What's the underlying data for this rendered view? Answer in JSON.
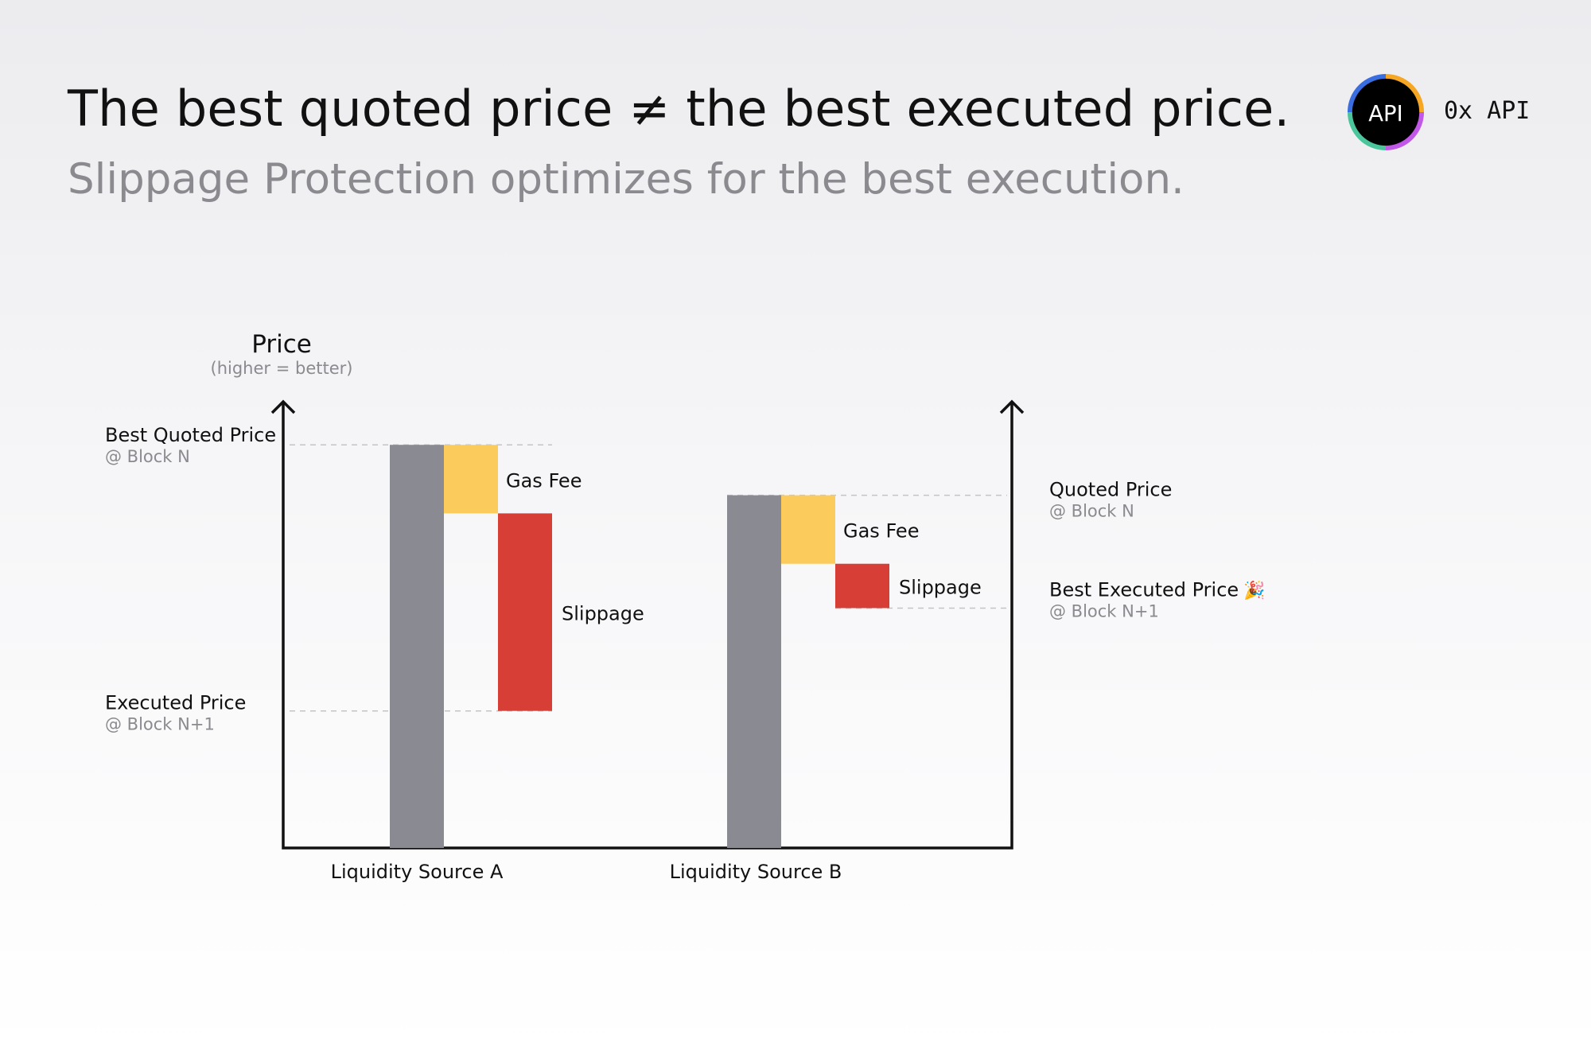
{
  "header": {
    "title": "The best quoted price ≠ the best executed price.",
    "subtitle": "Slippage Protection optimizes for the best execution."
  },
  "brand": {
    "logo_text": "API",
    "name": "0x API",
    "ring_colors": [
      "#f5a623",
      "#c158e8",
      "#4bc59b",
      "#3a6ee0"
    ]
  },
  "chart_data": {
    "type": "bar",
    "ylabel": "Price",
    "ylabel_note": "(higher = better)",
    "categories": [
      "Liquidity Source A",
      "Liquidity Source B"
    ],
    "sources": [
      {
        "name": "Liquidity Source A",
        "quoted": 100,
        "gas_fee": 17,
        "slippage": 49,
        "executed": 34,
        "quoted_label": "Best Quoted Price",
        "quoted_sub": "@ Block N",
        "executed_label": "Executed Price",
        "executed_sub": "@ Block N+1"
      },
      {
        "name": "Liquidity Source B",
        "quoted": 87.5,
        "gas_fee": 17,
        "slippage": 11,
        "executed": 59.5,
        "quoted_label": "Quoted Price",
        "quoted_sub": "@ Block N",
        "executed_label": "Best Executed Price",
        "executed_sub": "@ Block N+1",
        "executed_emoji": "🎉"
      }
    ],
    "component_labels": {
      "gas_fee": "Gas Fee",
      "slippage": "Slippage"
    },
    "colors": {
      "price": "#898a92",
      "gas_fee": "#fbcb5c",
      "slippage": "#d73f36",
      "axis": "#111111",
      "guide": "#c4c4c8",
      "sub_text": "#8a8a8f"
    },
    "ylim": [
      0,
      118
    ]
  }
}
